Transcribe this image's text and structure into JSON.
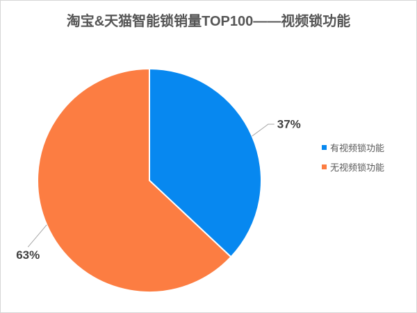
{
  "window": {
    "background_color": "#ffffff",
    "border_color": "#d6d6d6"
  },
  "chart_data": {
    "type": "pie",
    "title": "淘宝&天猫智能锁销量TOP100——视频锁功能",
    "title_color": "#555555",
    "slices": [
      {
        "name": "有视频锁功能",
        "value": 37,
        "label": "37%",
        "color": "#0788f0"
      },
      {
        "name": "无视频锁功能",
        "value": 63,
        "label": "63%",
        "color": "#fc7d42"
      }
    ],
    "start_angle_deg": 0,
    "direction": "clockwise",
    "legend_position": "right",
    "data_label_color": "#404040",
    "leader_line_color": "#a6a6a6",
    "slice_separator_color": "#ffffff"
  }
}
